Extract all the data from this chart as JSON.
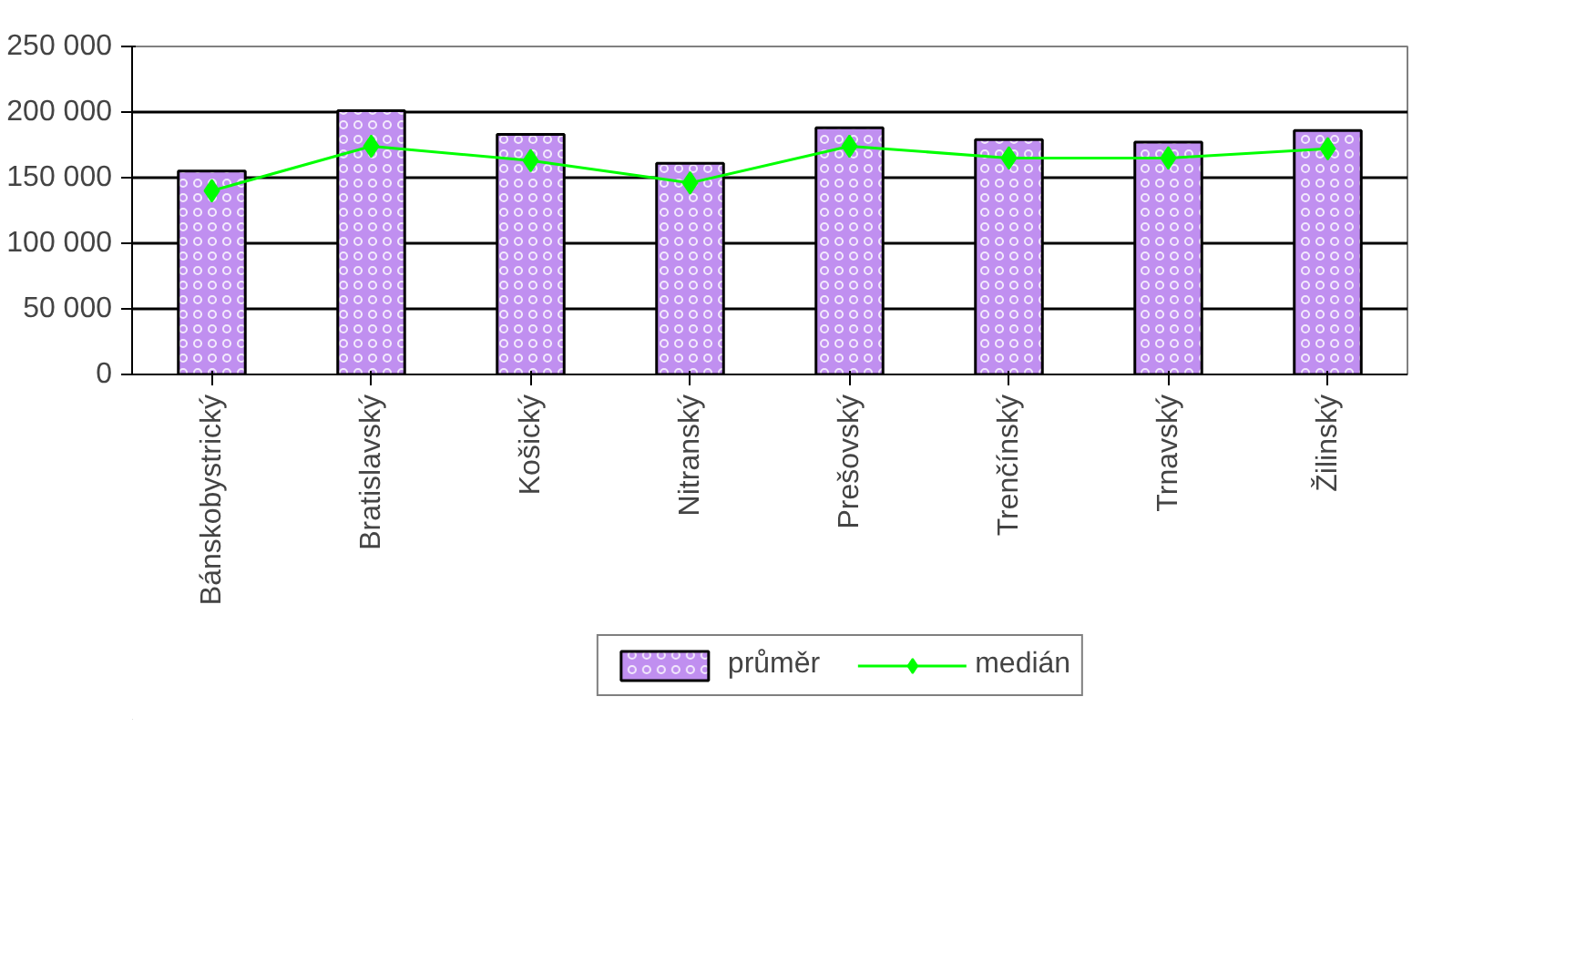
{
  "chart_data": {
    "type": "bar",
    "categories": [
      "Bánskobystrický",
      "Bratislavský",
      "Košický",
      "Nitranský",
      "Prešovský",
      "Trenčínský",
      "Trnavský",
      "Žilinský"
    ],
    "series": [
      {
        "name": "průměr",
        "color": "#c08ff0",
        "values": [
          155000,
          201000,
          183000,
          161000,
          188000,
          179000,
          177000,
          186000
        ]
      },
      {
        "name": "medián",
        "type": "line",
        "color": "#00ff00",
        "marker": "diamond",
        "values": [
          140000,
          174000,
          163000,
          146000,
          174000,
          165000,
          165000,
          172000
        ]
      }
    ],
    "ylim": [
      0,
      250000
    ],
    "yticks": [
      {
        "value": 0,
        "label": "0"
      },
      {
        "value": 50000,
        "label": "50 000"
      },
      {
        "value": 100000,
        "label": "100 000"
      },
      {
        "value": 150000,
        "label": "150 000"
      },
      {
        "value": 200000,
        "label": "200 000"
      },
      {
        "value": 250000,
        "label": "250 000"
      }
    ],
    "grid": "y",
    "legend": "bottom"
  }
}
